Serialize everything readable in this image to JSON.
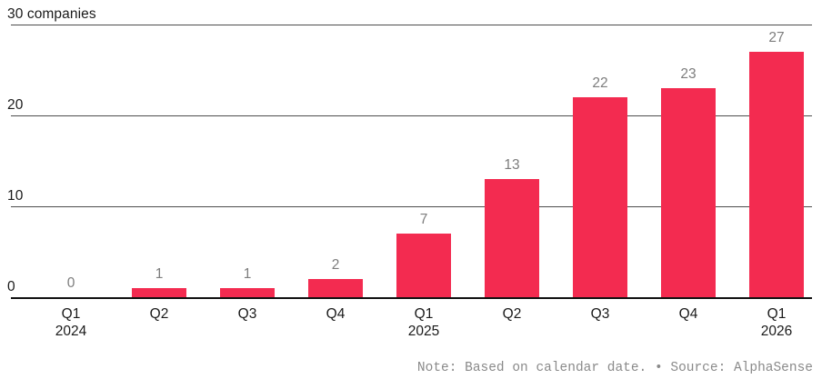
{
  "chart_data": {
    "type": "bar",
    "categories": [
      {
        "quarter": "Q1",
        "year": "2024"
      },
      {
        "quarter": "Q2",
        "year": ""
      },
      {
        "quarter": "Q3",
        "year": ""
      },
      {
        "quarter": "Q4",
        "year": ""
      },
      {
        "quarter": "Q1",
        "year": "2025"
      },
      {
        "quarter": "Q2",
        "year": ""
      },
      {
        "quarter": "Q3",
        "year": ""
      },
      {
        "quarter": "Q4",
        "year": ""
      },
      {
        "quarter": "Q1",
        "year": "2026"
      }
    ],
    "values": [
      0,
      1,
      1,
      2,
      7,
      13,
      22,
      23,
      27
    ],
    "value_labels": [
      "0",
      "1",
      "1",
      "2",
      "7",
      "13",
      "22",
      "23",
      "27"
    ],
    "yticks": [
      {
        "value": 0,
        "label": "0"
      },
      {
        "value": 10,
        "label": "10"
      },
      {
        "value": 20,
        "label": "20"
      },
      {
        "value": 30,
        "label": "30 companies"
      }
    ],
    "ylim": [
      0,
      30
    ],
    "ylabel": "companies",
    "xlabel": "",
    "title": "",
    "grid": true,
    "legend": "none",
    "bar_color": "#F32B50",
    "gridline_color": "#4d4d4d",
    "baseline_color": "#111111",
    "value_label_color": "#7d7d7d",
    "axis_text_color": "#1a1a1a"
  },
  "note": {
    "text": "Note: Based on calendar date. • Source: AlphaSense"
  }
}
